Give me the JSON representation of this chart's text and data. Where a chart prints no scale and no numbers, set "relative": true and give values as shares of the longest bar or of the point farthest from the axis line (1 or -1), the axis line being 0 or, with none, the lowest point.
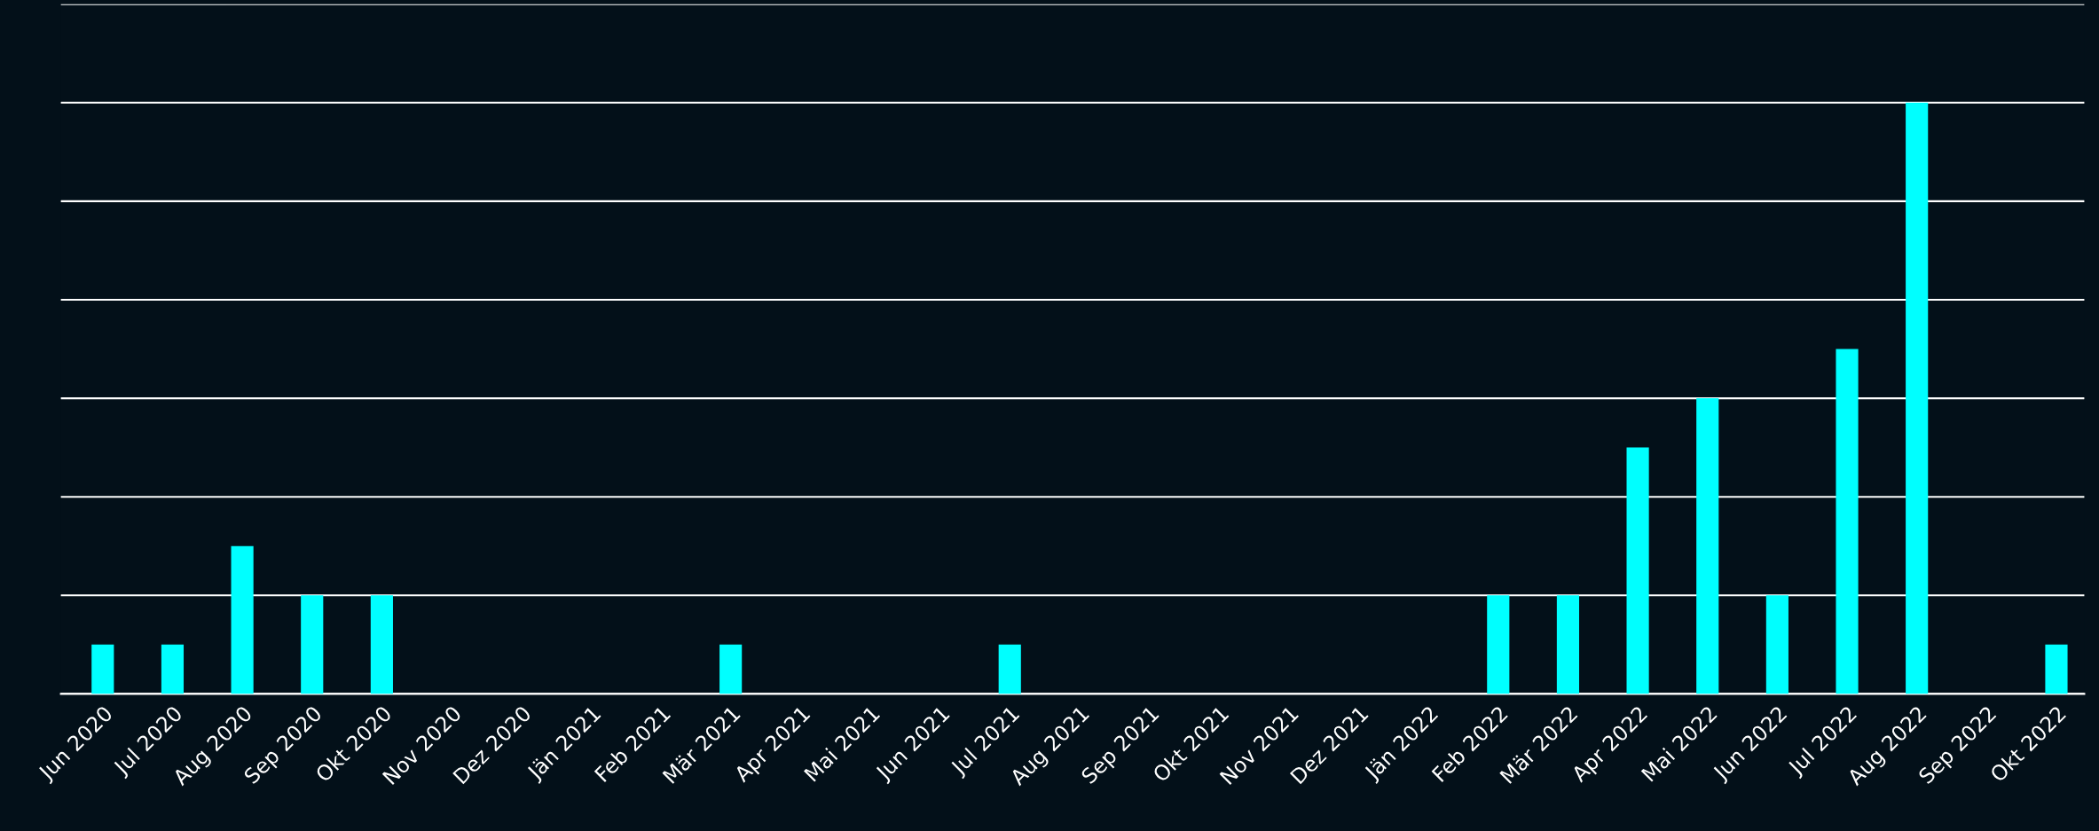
{
  "chart_data": {
    "type": "bar",
    "relative": true,
    "color": "#00ffff",
    "grid": "y",
    "categories": [
      "Jun 2020",
      "Jul 2020",
      "Aug 2020",
      "Sep 2020",
      "Okt 2020",
      "Nov 2020",
      "Dez 2020",
      "Jän 2021",
      "Feb 2021",
      "Mär 2021",
      "Apr 2021",
      "Mai 2021",
      "Jun 2021",
      "Jul 2021",
      "Aug 2021",
      "Sep 2021",
      "Okt 2021",
      "Nov 2021",
      "Dez 2021",
      "Jän 2022",
      "Feb 2022",
      "Mär 2022",
      "Apr 2022",
      "Mai 2022",
      "Jun 2022",
      "Jul 2022",
      "Aug 2022",
      "Sep 2022",
      "Okt 2022"
    ],
    "values": [
      0.0833,
      0.0833,
      0.25,
      0.1667,
      0.1667,
      0,
      0,
      0,
      0,
      0.0833,
      0,
      0,
      0,
      0.0833,
      0,
      0,
      0,
      0,
      0,
      0,
      0.1667,
      0.1667,
      0.4167,
      0.5,
      0.1667,
      0.5833,
      1,
      0,
      0.0833
    ]
  }
}
